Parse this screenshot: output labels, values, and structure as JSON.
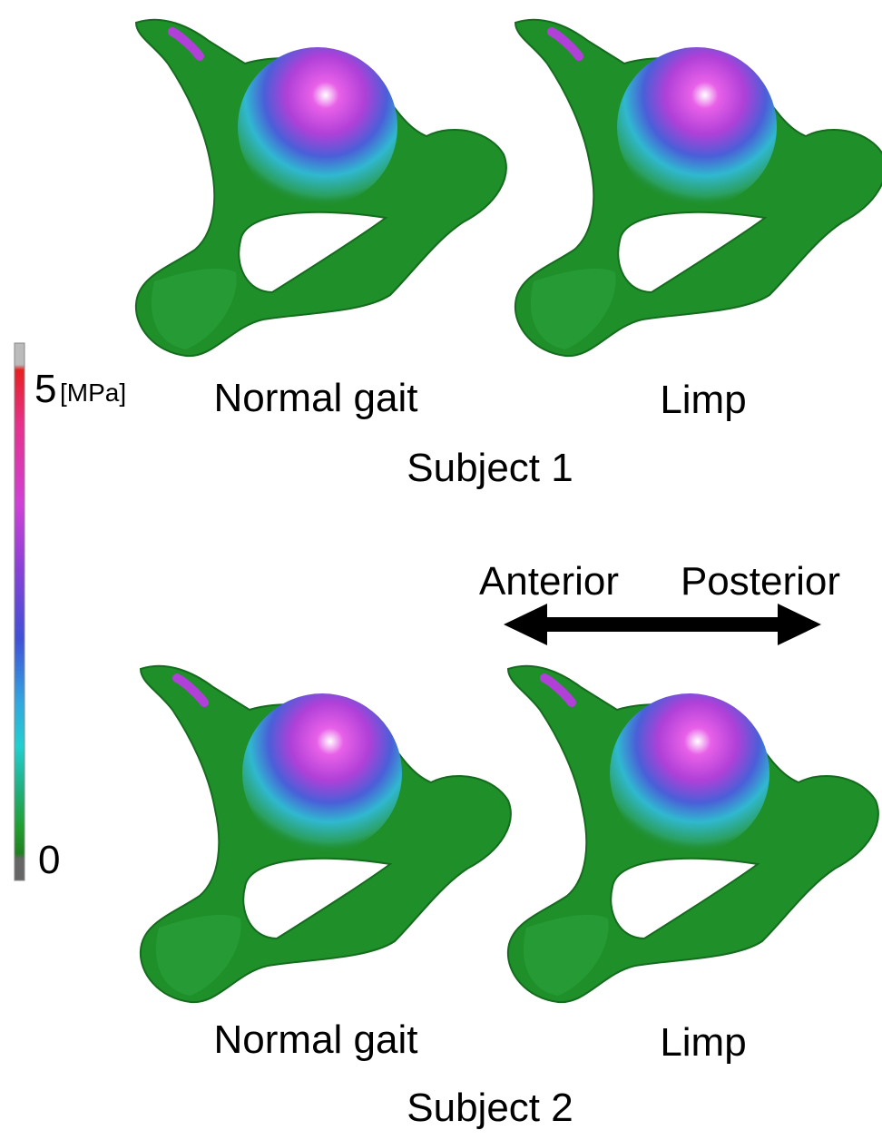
{
  "colorbar": {
    "max_label": "5",
    "unit": "[MPa]",
    "min_label": "0"
  },
  "subject_1": {
    "panels": [
      "Normal gait",
      "Limp"
    ],
    "label": "Subject 1"
  },
  "direction": {
    "left": "Anterior",
    "right": "Posterior"
  },
  "subject_2": {
    "panels": [
      "Normal gait",
      "Limp"
    ],
    "label": "Subject 2"
  }
}
